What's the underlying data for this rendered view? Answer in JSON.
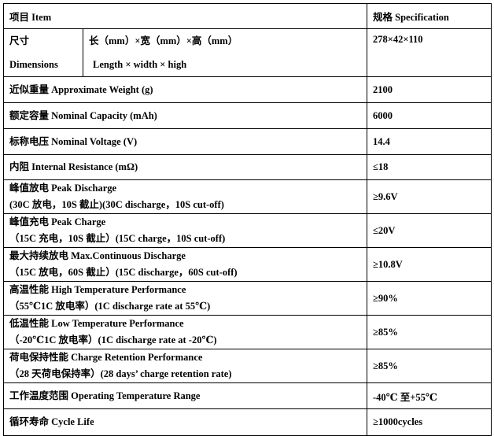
{
  "header": {
    "item": "项目 Item",
    "spec": "规格 Specification"
  },
  "dimensions": {
    "label_cn": "尺寸",
    "label_en": "Dimensions",
    "desc_cn": "长（mm）×宽（mm）×高（mm）",
    "desc_en": "Length × width  × high",
    "value": "278×42×110"
  },
  "rows": [
    {
      "line1": "近似重量 Approximate Weight (g)",
      "line2": "",
      "value": "2100"
    },
    {
      "line1": "额定容量 Nominal Capacity (mAh)",
      "line2": "",
      "value": "6000"
    },
    {
      "line1": "标称电压 Nominal Voltage (V)",
      "line2": "",
      "value": "14.4"
    },
    {
      "line1": "内阻 Internal Resistance (mΩ)",
      "line2": "",
      "value": "≤18"
    },
    {
      "line1": "峰值放电 Peak Discharge",
      "line2": "(30C 放电，10S 截止)(30C discharge，10S cut-off)",
      "value": "≥9.6V"
    },
    {
      "line1": "峰值充电 Peak Charge",
      "line2": "（15C 充电，10S 截止）(15C charge，10S cut-off)",
      "value": "≤20V"
    },
    {
      "line1": "最大持续放电 Max.Continuous Discharge",
      "line2": "（15C 放电，60S 截止）(15C discharge，60S cut-off)",
      "value": "≥10.8V"
    },
    {
      "line1": "高温性能 High Temperature Performance",
      "line2": "（55℃1C 放电率）(1C discharge rate at 55℃)",
      "value": "≥90%"
    },
    {
      "line1": "低温性能 Low Temperature Performance",
      "line2": "（-20℃1C 放电率）(1C discharge rate at -20℃)",
      "value": "≥85%"
    },
    {
      "line1": "荷电保持性能 Charge Retention Performance",
      "line2": "（28 天荷电保持率）(28 days’ charge retention rate)",
      "value": "≥85%"
    },
    {
      "line1": "工作温度范围 Operating Temperature Range",
      "line2": "",
      "value": "-40℃ 至+55℃"
    },
    {
      "line1": "循环寿命 Cycle Life",
      "line2": "",
      "value": "≥1000cycles"
    }
  ]
}
